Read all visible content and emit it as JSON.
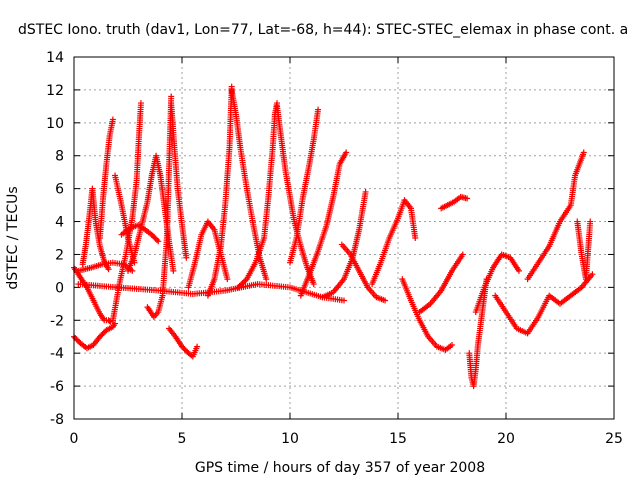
{
  "chart_data": {
    "type": "scatter",
    "title": "dSTEC Iono. truth (dav1, Lon=77, Lat=-68, h=44): STEC-STEC_elemax in phase cont. a",
    "xlabel": "GPS time / hours of day 357 of year 2008",
    "ylabel": "dSTEC  / TECUs",
    "xlim": [
      0,
      25
    ],
    "ylim": [
      -8,
      14
    ],
    "x_ticks": [
      "0",
      "5",
      "10",
      "15",
      "20",
      "25"
    ],
    "y_ticks": [
      "-8",
      "-6",
      "-4",
      "-2",
      "0",
      "2",
      "4",
      "6",
      "8",
      "10",
      "12",
      "14"
    ],
    "grid": true,
    "marker": "+",
    "color": "#ff0000",
    "series": [
      {
        "x": [
          0.0,
          0.3,
          0.6,
          0.9,
          1.2,
          1.5,
          1.8,
          1.9
        ],
        "y": [
          -3.0,
          -3.4,
          -3.7,
          -3.5,
          -3.0,
          -2.6,
          -2.4,
          -2.2
        ]
      },
      {
        "x": [
          0.0,
          0.3,
          0.6,
          0.9,
          1.2,
          1.4,
          1.6,
          1.7
        ],
        "y": [
          1.2,
          0.6,
          0.0,
          -0.8,
          -1.6,
          -2.0,
          -2.0,
          -2.1
        ]
      },
      {
        "x": [
          0.4,
          0.55,
          0.7,
          0.85,
          1.0,
          1.2,
          1.4,
          1.6
        ],
        "y": [
          1.4,
          2.6,
          4.2,
          6.0,
          4.0,
          2.5,
          1.6,
          1.1
        ]
      },
      {
        "x": [
          1.2,
          1.35,
          1.5,
          1.65,
          1.8
        ],
        "y": [
          3.0,
          5.5,
          7.5,
          9.2,
          10.2
        ]
      },
      {
        "x": [
          1.8,
          2.1,
          2.4,
          2.7,
          2.9,
          3.0,
          3.1
        ],
        "y": [
          -2.0,
          0.2,
          2.0,
          4.2,
          6.5,
          9.0,
          11.2
        ]
      },
      {
        "x": [
          0.2,
          0.8,
          1.3,
          1.8,
          2.3,
          2.7
        ],
        "y": [
          1.0,
          1.2,
          1.4,
          1.5,
          1.4,
          1.0
        ]
      },
      {
        "x": [
          1.9,
          2.2,
          2.5,
          2.8
        ],
        "y": [
          6.8,
          5.0,
          3.0,
          1.5
        ]
      },
      {
        "x": [
          2.5,
          2.8,
          3.1,
          3.4,
          3.6,
          3.8,
          4.0,
          4.2,
          4.4,
          4.6
        ],
        "y": [
          1.0,
          2.0,
          3.6,
          5.2,
          6.8,
          8.0,
          6.8,
          4.8,
          2.8,
          1.0
        ]
      },
      {
        "x": [
          2.2,
          2.6,
          3.0,
          3.3,
          3.6,
          3.9
        ],
        "y": [
          3.2,
          3.6,
          3.8,
          3.5,
          3.2,
          2.8
        ]
      },
      {
        "x": [
          3.4,
          3.7,
          3.9,
          4.1,
          4.3,
          4.5
        ],
        "y": [
          -1.2,
          -1.8,
          -1.5,
          -0.5,
          3.0,
          11.6
        ]
      },
      {
        "x": [
          4.5,
          4.65,
          4.8,
          5.0,
          5.2
        ],
        "y": [
          11.2,
          8.5,
          6.0,
          3.8,
          1.8
        ]
      },
      {
        "x": [
          4.4,
          4.7,
          5.0,
          5.3,
          5.5,
          5.7
        ],
        "y": [
          -2.5,
          -3.0,
          -3.6,
          -4.0,
          -4.2,
          -3.6
        ]
      },
      {
        "x": [
          5.3,
          5.6,
          5.9,
          6.2,
          6.5,
          6.8,
          7.1
        ],
        "y": [
          0.0,
          1.5,
          3.2,
          4.0,
          3.5,
          2.0,
          0.5
        ]
      },
      {
        "x": [
          6.2,
          6.5,
          6.8,
          7.0,
          7.2,
          7.3
        ],
        "y": [
          -0.5,
          0.5,
          2.5,
          5.0,
          8.5,
          12.2
        ]
      },
      {
        "x": [
          7.3,
          7.5,
          7.7,
          8.0,
          8.3,
          8.6,
          8.9
        ],
        "y": [
          12.0,
          10.5,
          8.5,
          6.0,
          3.8,
          1.8,
          0.5
        ]
      },
      {
        "x": [
          7.6,
          8.0,
          8.4,
          8.8,
          9.0,
          9.2,
          9.3,
          9.4
        ],
        "y": [
          0.0,
          0.5,
          1.5,
          3.0,
          5.5,
          8.5,
          10.5,
          11.2
        ]
      },
      {
        "x": [
          9.4,
          9.6,
          9.8,
          10.0,
          10.2,
          10.5,
          10.8,
          11.1
        ],
        "y": [
          11.0,
          9.0,
          7.0,
          5.5,
          4.0,
          2.5,
          1.2,
          0.2
        ]
      },
      {
        "x": [
          0.2,
          2.0,
          4.0,
          5.5,
          7.0,
          8.5,
          10.0,
          11.5,
          12.5
        ],
        "y": [
          0.2,
          0.0,
          -0.2,
          -0.4,
          -0.2,
          0.2,
          0.0,
          -0.6,
          -0.8
        ]
      },
      {
        "x": [
          10.0,
          10.3,
          10.6,
          10.9,
          11.1,
          11.3
        ],
        "y": [
          1.5,
          3.0,
          5.5,
          7.5,
          9.0,
          10.8
        ]
      },
      {
        "x": [
          10.5,
          10.9,
          11.3,
          11.7,
          12.0,
          12.3,
          12.6
        ],
        "y": [
          -0.5,
          0.8,
          2.2,
          3.8,
          5.5,
          7.5,
          8.2
        ]
      },
      {
        "x": [
          11.5,
          12.0,
          12.5,
          12.9,
          13.2,
          13.5
        ],
        "y": [
          -0.6,
          -0.3,
          0.5,
          1.8,
          3.5,
          5.8
        ]
      },
      {
        "x": [
          12.4,
          12.8,
          13.2,
          13.6,
          14.0,
          14.4
        ],
        "y": [
          2.6,
          2.0,
          1.0,
          0.0,
          -0.6,
          -0.8
        ]
      },
      {
        "x": [
          13.8,
          14.2,
          14.6,
          15.0,
          15.3,
          15.6,
          15.8
        ],
        "y": [
          0.2,
          1.5,
          3.0,
          4.2,
          5.3,
          4.8,
          3.0
        ]
      },
      {
        "x": [
          15.2,
          15.6,
          16.0,
          16.4,
          16.8,
          17.2,
          17.5
        ],
        "y": [
          0.5,
          -0.8,
          -2.0,
          -3.0,
          -3.6,
          -3.8,
          -3.5
        ]
      },
      {
        "x": [
          16.0,
          16.5,
          17.0,
          17.5,
          18.0
        ],
        "y": [
          -1.5,
          -1.0,
          -0.2,
          1.0,
          2.0
        ]
      },
      {
        "x": [
          17.0,
          17.3,
          17.6,
          17.9,
          18.2
        ],
        "y": [
          4.8,
          5.0,
          5.2,
          5.5,
          5.4
        ]
      },
      {
        "x": [
          18.3,
          18.4,
          18.5,
          18.6,
          18.7,
          18.9,
          19.1
        ],
        "y": [
          -4.0,
          -5.5,
          -6.0,
          -5.0,
          -3.5,
          -1.5,
          0.5
        ]
      },
      {
        "x": [
          18.6,
          19.0,
          19.4,
          19.8,
          20.2,
          20.6
        ],
        "y": [
          -1.5,
          0.0,
          1.2,
          2.0,
          1.8,
          1.0
        ]
      },
      {
        "x": [
          19.5,
          20.0,
          20.5,
          21.0,
          21.5,
          22.0,
          22.5,
          23.0,
          23.5,
          24.0
        ],
        "y": [
          -0.5,
          -1.5,
          -2.5,
          -2.8,
          -1.8,
          -0.5,
          -1.0,
          -0.5,
          0.0,
          0.8
        ]
      },
      {
        "x": [
          21.0,
          21.5,
          22.0,
          22.5,
          23.0,
          23.2,
          23.4,
          23.6
        ],
        "y": [
          0.5,
          1.5,
          2.5,
          4.0,
          5.0,
          6.8,
          7.5,
          8.2
        ]
      },
      {
        "x": [
          23.3,
          23.5,
          23.7,
          23.9
        ],
        "y": [
          4.0,
          2.0,
          0.5,
          4.0
        ]
      }
    ]
  }
}
